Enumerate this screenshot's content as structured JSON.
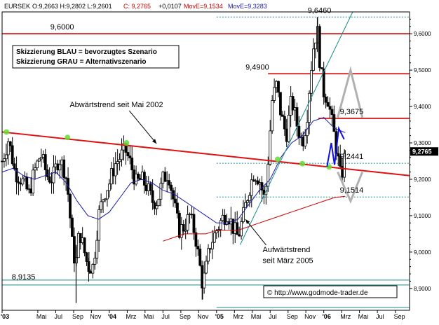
{
  "header": {
    "symbol": "EURSEK",
    "ohlc": "O:9,2663 H:9,2802 L:9,2601",
    "close": "C: 9,2765",
    "change": "+0,0107",
    "ma_fast": "MovE=9,1534",
    "ma_slow": "MovE=9,3283"
  },
  "legend_box": {
    "line1": "Skizzierung BLAU = bevorzugtes Szenario",
    "line2": "Skizzierung GRAU = Alternativszenario"
  },
  "copyright": "© http://www.godmode-trader.de",
  "colors": {
    "candles": "#000000",
    "ma_fast": "#1a1aa6",
    "ma_slow": "#cc0000",
    "resistance": "#cc0000",
    "support_dotted": "#1a8a8a",
    "trendline_down": "#e01010",
    "trendline_up": "#1a8a8a",
    "touch_markers": "#66dd33",
    "scenario_blue": "#1010e0",
    "scenario_grey": "#b0b0b0",
    "current_price_box": "#000000"
  },
  "chart_data": {
    "type": "line",
    "title": "",
    "xlabel": "",
    "ylabel": "",
    "ylim": [
      8.84,
      9.66
    ],
    "y_ticks": [
      8.9,
      9.0,
      9.1,
      9.2,
      9.3,
      9.4,
      9.5,
      9.6
    ],
    "y_tick_labels": [
      "8,9000",
      "9,0000",
      "9,1000",
      "9,2000",
      "9,3000",
      "9,4000",
      "9,5000",
      "9,6000"
    ],
    "x_range": [
      2003.0,
      2006.8
    ],
    "x_ticks": [
      {
        "label": "'03",
        "x": 2003.0
      },
      {
        "label": "Mai",
        "x": 2003.333
      },
      {
        "label": "Jul",
        "x": 2003.5
      },
      {
        "label": "Sep",
        "x": 2003.667
      },
      {
        "label": "Nov",
        "x": 2003.833
      },
      {
        "label": "'04",
        "x": 2004.0
      },
      {
        "label": "Mrz",
        "x": 2004.167
      },
      {
        "label": "Mai",
        "x": 2004.333
      },
      {
        "label": "Jul",
        "x": 2004.5
      },
      {
        "label": "Sep",
        "x": 2004.667
      },
      {
        "label": "Nov",
        "x": 2004.833
      },
      {
        "label": "'05",
        "x": 2005.0
      },
      {
        "label": "Mrz",
        "x": 2005.167
      },
      {
        "label": "Mai",
        "x": 2005.333
      },
      {
        "label": "Jul",
        "x": 2005.5
      },
      {
        "label": "Sep",
        "x": 2005.667
      },
      {
        "label": "Nov",
        "x": 2005.833
      },
      {
        "label": "'06",
        "x": 2006.0
      },
      {
        "label": "Mrz",
        "x": 2006.167
      },
      {
        "label": "Mai",
        "x": 2006.333
      },
      {
        "label": "Jul",
        "x": 2006.5
      },
      {
        "label": "Sep",
        "x": 2006.667
      }
    ],
    "current_price": {
      "value": 9.2765,
      "label": "9,2765"
    },
    "levels": [
      {
        "value": 9.646,
        "label": "9,6460",
        "style": "dotted",
        "x_start": 2005.0,
        "label_x": 2005.85
      },
      {
        "value": 9.6,
        "label": "9,6000",
        "style": "solid-red",
        "x_start": 2003.0,
        "label_x": 2003.45
      },
      {
        "value": 9.49,
        "label": "9,4900",
        "style": "solid-red",
        "x_start": 2005.48,
        "label_x": 2005.27
      },
      {
        "value": 9.3675,
        "label": "9,3675",
        "style": "solid-red",
        "x_start": 2005.95,
        "label_x": 2006.15
      },
      {
        "value": 9.2441,
        "label": "9,2441",
        "style": "dotted",
        "x_start": 2005.0,
        "label_x": 2006.15
      },
      {
        "value": 9.1514,
        "label": "9,1514",
        "style": "dotted",
        "x_start": 2005.0,
        "label_x": 2006.15
      },
      {
        "value": 8.9135,
        "label": "8,9135",
        "style": "solid-double",
        "x_start": 2003.0,
        "label_x": 2003.09
      }
    ],
    "bottom_level": {
      "value": 8.848,
      "x_start": 2005.0
    },
    "trendlines": [
      {
        "name": "Abwärtstrend seit Mai 2002",
        "kind": "down",
        "from": [
          2003.0,
          9.33
        ],
        "to": [
          2006.8,
          9.21
        ]
      },
      {
        "name": "Aufwärtstrend seit März 2005",
        "kind": "up",
        "from": [
          2005.22,
          9.02
        ],
        "to": [
          2006.27,
          9.66
        ]
      }
    ],
    "trendline_touches": [
      {
        "x": 2003.04,
        "y": 9.33
      },
      {
        "x": 2003.61,
        "y": 9.315
      },
      {
        "x": 2004.16,
        "y": 9.3
      },
      {
        "x": 2005.57,
        "y": 9.255
      },
      {
        "x": 2005.8,
        "y": 9.243
      },
      {
        "x": 2006.05,
        "y": 9.234
      }
    ],
    "annotations": [
      {
        "text": "Abwärtstrend seit Mai 2002",
        "x": 2003.63,
        "y": 9.398,
        "arrow_to": [
          2004.44,
          9.298
        ]
      },
      {
        "text": "Aufwärtstrend",
        "x": 2005.43,
        "y": 9.0,
        "arrow_to": [
          2005.27,
          9.09
        ]
      },
      {
        "text": "seit März 2005",
        "x": 2005.43,
        "y": 8.97,
        "arrow_to": null
      }
    ],
    "scenarios": [
      {
        "name": "Skizzierung BLAU",
        "color": "blue",
        "points": [
          [
            2006.03,
            9.235
          ],
          [
            2006.07,
            9.3
          ],
          [
            2006.1,
            9.24
          ],
          [
            2006.14,
            9.34
          ],
          [
            2006.19,
            9.31
          ]
        ]
      },
      {
        "name": "Skizzierung GRAU",
        "color": "grey",
        "points": [
          [
            2006.13,
            9.37
          ],
          [
            2006.25,
            9.5
          ],
          [
            2006.36,
            9.37
          ],
          [
            2006.13,
            9.22
          ],
          [
            2006.25,
            9.14
          ],
          [
            2006.36,
            9.22
          ]
        ]
      }
    ],
    "candle_path": [
      [
        2003.0,
        9.25
      ],
      [
        2003.06,
        9.31
      ],
      [
        2003.12,
        9.22
      ],
      [
        2003.18,
        9.2
      ],
      [
        2003.25,
        9.16
      ],
      [
        2003.3,
        9.22
      ],
      [
        2003.36,
        9.27
      ],
      [
        2003.42,
        9.21
      ],
      [
        2003.47,
        9.2
      ],
      [
        2003.53,
        9.26
      ],
      [
        2003.59,
        9.22
      ],
      [
        2003.62,
        9.15
      ],
      [
        2003.66,
        9.0
      ],
      [
        2003.69,
        8.97
      ],
      [
        2003.72,
        9.06
      ],
      [
        2003.76,
        9.01
      ],
      [
        2003.8,
        8.96
      ],
      [
        2003.85,
        8.96
      ],
      [
        2003.9,
        9.1
      ],
      [
        2003.95,
        9.16
      ],
      [
        2004.0,
        9.19
      ],
      [
        2004.05,
        9.24
      ],
      [
        2004.1,
        9.26
      ],
      [
        2004.15,
        9.28
      ],
      [
        2004.2,
        9.24
      ],
      [
        2004.25,
        9.19
      ],
      [
        2004.3,
        9.2
      ],
      [
        2004.35,
        9.18
      ],
      [
        2004.4,
        9.14
      ],
      [
        2004.45,
        9.14
      ],
      [
        2004.5,
        9.2
      ],
      [
        2004.55,
        9.22
      ],
      [
        2004.6,
        9.14
      ],
      [
        2004.65,
        9.06
      ],
      [
        2004.7,
        9.07
      ],
      [
        2004.75,
        9.1
      ],
      [
        2004.8,
        9.05
      ],
      [
        2004.84,
        8.97
      ],
      [
        2004.87,
        8.91
      ],
      [
        2004.9,
        8.95
      ],
      [
        2004.94,
        9.02
      ],
      [
        2005.0,
        9.06
      ],
      [
        2005.05,
        9.09
      ],
      [
        2005.1,
        9.11
      ],
      [
        2005.15,
        9.07
      ],
      [
        2005.2,
        9.04
      ],
      [
        2005.25,
        9.1
      ],
      [
        2005.3,
        9.17
      ],
      [
        2005.35,
        9.22
      ],
      [
        2005.4,
        9.2
      ],
      [
        2005.45,
        9.14
      ],
      [
        2005.48,
        9.25
      ],
      [
        2005.52,
        9.42
      ],
      [
        2005.56,
        9.46
      ],
      [
        2005.6,
        9.38
      ],
      [
        2005.65,
        9.32
      ],
      [
        2005.7,
        9.42
      ],
      [
        2005.75,
        9.35
      ],
      [
        2005.8,
        9.3
      ],
      [
        2005.84,
        9.36
      ],
      [
        2005.88,
        9.5
      ],
      [
        2005.91,
        9.58
      ],
      [
        2005.94,
        9.61
      ],
      [
        2005.97,
        9.5
      ],
      [
        2006.0,
        9.44
      ],
      [
        2006.04,
        9.42
      ],
      [
        2006.08,
        9.35
      ],
      [
        2006.11,
        9.3
      ],
      [
        2006.13,
        9.26
      ],
      [
        2006.16,
        9.2
      ],
      [
        2006.19,
        9.25
      ],
      [
        2006.2,
        9.2765
      ]
    ],
    "extreme_wicks": [
      {
        "x": 2003.69,
        "high": 9.02,
        "low": 8.86
      },
      {
        "x": 2003.81,
        "high": 9.0,
        "low": 8.94
      },
      {
        "x": 2004.87,
        "high": 8.96,
        "low": 8.87
      },
      {
        "x": 2005.94,
        "high": 9.646,
        "low": 9.55
      },
      {
        "x": 2006.2,
        "high": 9.2802,
        "low": 9.2601
      }
    ],
    "series": [
      {
        "name": "MovE=9,1534",
        "color": "red",
        "values": [
          [
            2004.5,
            9.03
          ],
          [
            2004.6,
            9.04
          ],
          [
            2004.7,
            9.05
          ],
          [
            2004.8,
            9.05
          ],
          [
            2004.9,
            9.05
          ],
          [
            2005.0,
            9.06
          ],
          [
            2005.1,
            9.06
          ],
          [
            2005.2,
            9.06
          ],
          [
            2005.3,
            9.07
          ],
          [
            2005.4,
            9.08
          ],
          [
            2005.5,
            9.09
          ],
          [
            2005.6,
            9.1
          ],
          [
            2005.7,
            9.11
          ],
          [
            2005.8,
            9.12
          ],
          [
            2005.9,
            9.13
          ],
          [
            2006.0,
            9.14
          ],
          [
            2006.1,
            9.15
          ],
          [
            2006.2,
            9.1534
          ]
        ]
      },
      {
        "name": "MovE=9,3283",
        "color": "blue",
        "values": [
          [
            2003.0,
            9.22
          ],
          [
            2003.1,
            9.23
          ],
          [
            2003.2,
            9.21
          ],
          [
            2003.3,
            9.2
          ],
          [
            2003.4,
            9.21
          ],
          [
            2003.5,
            9.22
          ],
          [
            2003.6,
            9.19
          ],
          [
            2003.7,
            9.14
          ],
          [
            2003.8,
            9.1
          ],
          [
            2003.9,
            9.09
          ],
          [
            2004.0,
            9.11
          ],
          [
            2004.1,
            9.15
          ],
          [
            2004.2,
            9.19
          ],
          [
            2004.3,
            9.2
          ],
          [
            2004.4,
            9.19
          ],
          [
            2004.5,
            9.17
          ],
          [
            2004.6,
            9.16
          ],
          [
            2004.7,
            9.14
          ],
          [
            2004.8,
            9.12
          ],
          [
            2004.9,
            9.1
          ],
          [
            2005.0,
            9.08
          ],
          [
            2005.1,
            9.08
          ],
          [
            2005.2,
            9.09
          ],
          [
            2005.3,
            9.13
          ],
          [
            2005.4,
            9.17
          ],
          [
            2005.5,
            9.2
          ],
          [
            2005.6,
            9.26
          ],
          [
            2005.7,
            9.3
          ],
          [
            2005.8,
            9.32
          ],
          [
            2005.9,
            9.36
          ],
          [
            2006.0,
            9.37
          ],
          [
            2006.1,
            9.34
          ],
          [
            2006.2,
            9.3283
          ]
        ]
      }
    ]
  }
}
